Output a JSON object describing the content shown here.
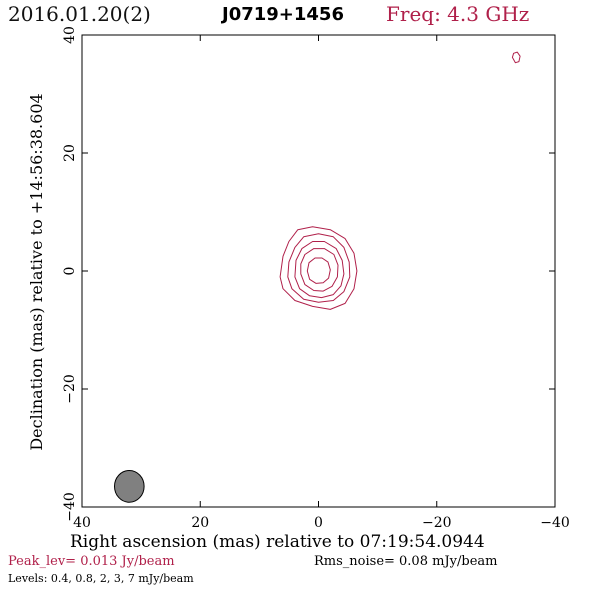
{
  "header": {
    "date": "2016.01.20(2)",
    "source": "J0719+1456",
    "freq": "Freq: 4.3 GHz"
  },
  "chart_data": {
    "type": "contour",
    "xlabel": "Right ascension (mas) relative to 07:19:54.0944",
    "ylabel": "Declination (mas) relative to +14:56:38.604",
    "xlim": [
      40,
      -40
    ],
    "ylim": [
      -40,
      40
    ],
    "xticks": [
      40,
      20,
      0,
      -20,
      -40
    ],
    "yticks": [
      -40,
      -20,
      0,
      20,
      40
    ],
    "contour_color": "#b0204a",
    "beam": {
      "ra": 32,
      "dec": -36.5,
      "bmaj_mas": 5.4,
      "bmin_mas": 5.0,
      "color": "#808080"
    },
    "contours": [
      {
        "level": 0.4,
        "points": [
          [
            6.5,
            -1
          ],
          [
            6,
            -3
          ],
          [
            4,
            -5
          ],
          [
            1,
            -6
          ],
          [
            -2,
            -6.5
          ],
          [
            -4.5,
            -5.5
          ],
          [
            -6,
            -3
          ],
          [
            -6.5,
            0
          ],
          [
            -6,
            3
          ],
          [
            -4.5,
            5.5
          ],
          [
            -2,
            7
          ],
          [
            1,
            7.5
          ],
          [
            3.5,
            7
          ],
          [
            5,
            5
          ],
          [
            6,
            2.5
          ]
        ]
      },
      {
        "level": 0.8,
        "points": [
          [
            5.2,
            -1
          ],
          [
            4.5,
            -3
          ],
          [
            2.5,
            -4.8
          ],
          [
            0,
            -5.3
          ],
          [
            -2.5,
            -5
          ],
          [
            -4.3,
            -3.5
          ],
          [
            -5.3,
            -1
          ],
          [
            -5.2,
            1.5
          ],
          [
            -4.3,
            4
          ],
          [
            -2.5,
            5.8
          ],
          [
            0,
            6.3
          ],
          [
            2.5,
            5.8
          ],
          [
            4,
            4
          ],
          [
            5,
            1.5
          ]
        ]
      },
      {
        "level": 2,
        "points": [
          [
            4,
            -1
          ],
          [
            3.2,
            -3
          ],
          [
            1.5,
            -4.2
          ],
          [
            -0.5,
            -4.5
          ],
          [
            -2.5,
            -4
          ],
          [
            -3.8,
            -2.5
          ],
          [
            -4.3,
            -0.5
          ],
          [
            -4,
            1.8
          ],
          [
            -3,
            3.8
          ],
          [
            -1,
            5
          ],
          [
            1,
            5
          ],
          [
            2.8,
            3.8
          ],
          [
            3.8,
            1.8
          ]
        ]
      },
      {
        "level": 3,
        "points": [
          [
            3,
            -0.5
          ],
          [
            2.3,
            -2.3
          ],
          [
            0.8,
            -3.3
          ],
          [
            -0.8,
            -3.4
          ],
          [
            -2.3,
            -2.6
          ],
          [
            -3.2,
            -1
          ],
          [
            -3.3,
            1
          ],
          [
            -2.6,
            2.8
          ],
          [
            -1,
            3.8
          ],
          [
            0.8,
            3.8
          ],
          [
            2.3,
            2.8
          ],
          [
            3,
            1.2
          ]
        ]
      },
      {
        "level": 7,
        "points": [
          [
            1.9,
            0
          ],
          [
            1.5,
            -1.4
          ],
          [
            0.4,
            -2.1
          ],
          [
            -0.8,
            -2
          ],
          [
            -1.7,
            -1.2
          ],
          [
            -2,
            0.2
          ],
          [
            -1.6,
            1.5
          ],
          [
            -0.6,
            2.2
          ],
          [
            0.6,
            2.2
          ],
          [
            1.6,
            1.4
          ]
        ]
      },
      {
        "level": 0.4,
        "points": [
          [
            -32.8,
            36.2
          ],
          [
            -33.3,
            35.3
          ],
          [
            -33.9,
            35.5
          ],
          [
            -34.1,
            36.4
          ],
          [
            -33.6,
            37.1
          ],
          [
            -33,
            36.9
          ]
        ]
      }
    ],
    "peak_label": "Peak_lev=  0.013 Jy/beam",
    "rms_label": "Rms_noise= 0.08 mJy/beam",
    "levels_label": "Levels: 0.4, 0.8,    2,    3,    7 mJy/beam"
  }
}
